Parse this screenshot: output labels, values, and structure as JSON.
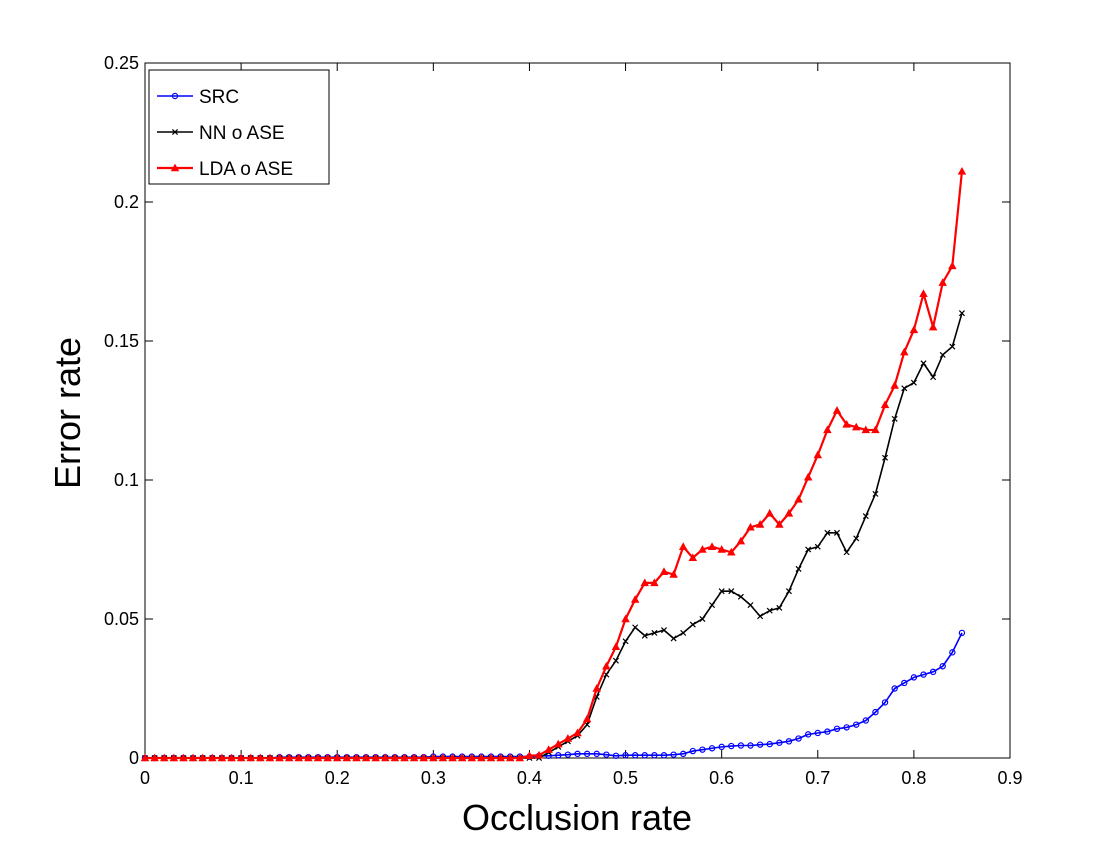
{
  "chart_data": {
    "type": "line",
    "title": "",
    "xlabel": "Occlusion rate",
    "ylabel": "Error rate",
    "xlim": [
      0,
      0.9
    ],
    "ylim": [
      0,
      0.25
    ],
    "xticks": [
      0,
      0.1,
      0.2,
      0.3,
      0.4,
      0.5,
      0.6,
      0.7,
      0.8,
      0.9
    ],
    "xtick_labels": [
      "0",
      "0.1",
      "0.2",
      "0.3",
      "0.4",
      "0.5",
      "0.6",
      "0.7",
      "0.8",
      "0.9"
    ],
    "yticks": [
      0,
      0.05,
      0.1,
      0.15,
      0.2,
      0.25
    ],
    "ytick_labels": [
      "0",
      "0.05",
      "0.1",
      "0.15",
      "0.2",
      "0.25"
    ],
    "grid": false,
    "legend_position": "top-left",
    "x": [
      0,
      0.01,
      0.02,
      0.03,
      0.04,
      0.05,
      0.06,
      0.07,
      0.08,
      0.09,
      0.1,
      0.11,
      0.12,
      0.13,
      0.14,
      0.15,
      0.16,
      0.17,
      0.18,
      0.19,
      0.2,
      0.21,
      0.22,
      0.23,
      0.24,
      0.25,
      0.26,
      0.27,
      0.28,
      0.29,
      0.3,
      0.31,
      0.32,
      0.33,
      0.34,
      0.35,
      0.36,
      0.37,
      0.38,
      0.39,
      0.4,
      0.41,
      0.42,
      0.43,
      0.44,
      0.45,
      0.46,
      0.47,
      0.48,
      0.49,
      0.5,
      0.51,
      0.52,
      0.53,
      0.54,
      0.55,
      0.56,
      0.57,
      0.58,
      0.59,
      0.6,
      0.61,
      0.62,
      0.63,
      0.64,
      0.65,
      0.66,
      0.67,
      0.68,
      0.69,
      0.7,
      0.71,
      0.72,
      0.73,
      0.74,
      0.75,
      0.76,
      0.77,
      0.78,
      0.79,
      0.8,
      0.81,
      0.82,
      0.83,
      0.84,
      0.85
    ],
    "series": [
      {
        "name": "SRC",
        "color": "#0000ff",
        "marker": "circle",
        "values": [
          0,
          0,
          0,
          0,
          0,
          0,
          0,
          0,
          0,
          0,
          0,
          0,
          0,
          0,
          0.0003,
          0.0003,
          0.0003,
          0.0003,
          0.0003,
          0.0003,
          0.0003,
          0.0003,
          0.0003,
          0.0003,
          0.0003,
          0.0003,
          0.0003,
          0.0003,
          0.0003,
          0.0003,
          0.0005,
          0.0005,
          0.0005,
          0.0005,
          0.0005,
          0.0005,
          0.0005,
          0.0005,
          0.0005,
          0.0005,
          0.0005,
          0.0008,
          0.0008,
          0.001,
          0.0012,
          0.0015,
          0.0015,
          0.0015,
          0.0012,
          0.0008,
          0.001,
          0.001,
          0.001,
          0.001,
          0.001,
          0.0012,
          0.0015,
          0.0025,
          0.003,
          0.0035,
          0.004,
          0.0043,
          0.0045,
          0.0045,
          0.0048,
          0.005,
          0.0055,
          0.006,
          0.007,
          0.0085,
          0.009,
          0.0095,
          0.0105,
          0.011,
          0.012,
          0.0135,
          0.0165,
          0.02,
          0.025,
          0.027,
          0.029,
          0.03,
          0.031,
          0.033,
          0.038,
          0.045
        ]
      },
      {
        "name": "NN o ASE",
        "color": "#000000",
        "marker": "x",
        "values": [
          0,
          0,
          0,
          0,
          0,
          0,
          0,
          0,
          0,
          0,
          0,
          0,
          0,
          0,
          0,
          0,
          0,
          0,
          0,
          0,
          0,
          0,
          0,
          0,
          0,
          0,
          0,
          0,
          0,
          0,
          0,
          0,
          0,
          0,
          0,
          0,
          0,
          0,
          0,
          0,
          0,
          0,
          0.002,
          0.004,
          0.006,
          0.008,
          0.012,
          0.022,
          0.03,
          0.035,
          0.042,
          0.047,
          0.044,
          0.045,
          0.046,
          0.043,
          0.045,
          0.048,
          0.05,
          0.055,
          0.06,
          0.06,
          0.058,
          0.055,
          0.051,
          0.053,
          0.054,
          0.06,
          0.068,
          0.075,
          0.076,
          0.081,
          0.081,
          0.074,
          0.079,
          0.087,
          0.095,
          0.108,
          0.122,
          0.133,
          0.135,
          0.142,
          0.137,
          0.145,
          0.148,
          0.16
        ]
      },
      {
        "name": "LDA o ASE",
        "color": "#ff0000",
        "marker": "triangle",
        "values": [
          0,
          0,
          0,
          0,
          0,
          0,
          0,
          0,
          0,
          0,
          0,
          0,
          0,
          0,
          0,
          0,
          0,
          0,
          0,
          0,
          0,
          0,
          0,
          0,
          0,
          0,
          0,
          0,
          0,
          0,
          0,
          0,
          0,
          0,
          0,
          0,
          0,
          0,
          0,
          0,
          0.0008,
          0.001,
          0.003,
          0.005,
          0.007,
          0.009,
          0.014,
          0.025,
          0.033,
          0.04,
          0.05,
          0.057,
          0.063,
          0.063,
          0.067,
          0.066,
          0.076,
          0.072,
          0.075,
          0.076,
          0.075,
          0.074,
          0.078,
          0.083,
          0.084,
          0.088,
          0.084,
          0.088,
          0.093,
          0.101,
          0.109,
          0.118,
          0.125,
          0.12,
          0.119,
          0.118,
          0.118,
          0.127,
          0.134,
          0.146,
          0.154,
          0.167,
          0.155,
          0.171,
          0.177,
          0.211
        ]
      }
    ]
  }
}
